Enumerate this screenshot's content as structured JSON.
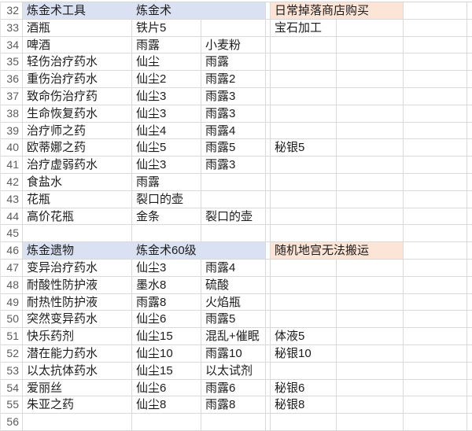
{
  "sheet": {
    "colors": {
      "highlight_blue": "#d9e1f2",
      "highlight_peach": "#fce4d6",
      "gridline": "#d9d9d9",
      "row_number_text": "#5c5c5c",
      "cell_text": "#1c1c1c"
    },
    "rows": [
      {
        "num": "32",
        "name": "炼金术工具",
        "mat1": "炼金术",
        "mat2": "",
        "note": "日常掉落商店购买",
        "highlight": true
      },
      {
        "num": "33",
        "name": "酒瓶",
        "mat1": "铁片5",
        "mat2": "",
        "mat3": "宝石加工"
      },
      {
        "num": "34",
        "name": "啤酒",
        "mat1": "雨露",
        "mat2": "小麦粉",
        "mat3": ""
      },
      {
        "num": "35",
        "name": "轻伤治疗药水",
        "mat1": "仙尘",
        "mat2": "雨露",
        "mat3": ""
      },
      {
        "num": "36",
        "name": "重伤治疗药水",
        "mat1": "仙尘2",
        "mat2": "雨露2",
        "mat3": ""
      },
      {
        "num": "37",
        "name": "致命伤治疗药",
        "mat1": "仙尘3",
        "mat2": "雨露3",
        "mat3": ""
      },
      {
        "num": "38",
        "name": "生命恢复药水",
        "mat1": "仙尘3",
        "mat2": "雨露3",
        "mat3": ""
      },
      {
        "num": "39",
        "name": "治疗师之药",
        "mat1": "仙尘4",
        "mat2": "雨露4",
        "mat3": ""
      },
      {
        "num": "40",
        "name": "欧蒂娜之药",
        "mat1": "仙尘5",
        "mat2": "雨露5",
        "mat3": "秘银5"
      },
      {
        "num": "41",
        "name": "治疗虚弱药水",
        "mat1": "仙尘3",
        "mat2": "雨露3",
        "mat3": ""
      },
      {
        "num": "42",
        "name": "食盐水",
        "mat1": "雨露",
        "mat2": "",
        "mat3": ""
      },
      {
        "num": "43",
        "name": "花瓶",
        "mat1": "裂口的壶",
        "mat2": "",
        "mat3": ""
      },
      {
        "num": "44",
        "name": "高价花瓶",
        "mat1": "金条",
        "mat2": "裂口的壶",
        "mat3": ""
      },
      {
        "num": "45",
        "name": "",
        "mat1": "",
        "mat2": "",
        "mat3": ""
      },
      {
        "num": "46",
        "name": "炼金遗物",
        "mat1": "炼金术60级",
        "mat2": "",
        "note": "随机地宫无法搬运",
        "highlight": true
      },
      {
        "num": "47",
        "name": "变异治疗药水",
        "mat1": "仙尘3",
        "mat2": "雨露4",
        "mat3": ""
      },
      {
        "num": "48",
        "name": "耐酸性防护液",
        "mat1": "墨水8",
        "mat2": "硫酸",
        "mat3": ""
      },
      {
        "num": "49",
        "name": "耐热性防护液",
        "mat1": "雨露8",
        "mat2": "火焰瓶",
        "mat3": ""
      },
      {
        "num": "50",
        "name": "突然变异药水",
        "mat1": "仙尘6",
        "mat2": "雨露5",
        "mat3": ""
      },
      {
        "num": "51",
        "name": "快乐药剂",
        "mat1": "仙尘15",
        "mat2": "混乱+催眠",
        "mat3": "体液5"
      },
      {
        "num": "52",
        "name": "潜在能力药水",
        "mat1": "仙尘10",
        "mat2": "雨露10",
        "mat3": "秘银10"
      },
      {
        "num": "53",
        "name": "以太抗体药水",
        "mat1": "仙尘15",
        "mat2": "以太试剂",
        "mat3": ""
      },
      {
        "num": "54",
        "name": "爱丽丝",
        "mat1": "仙尘6",
        "mat2": "雨露6",
        "mat3": "秘银6"
      },
      {
        "num": "55",
        "name": "朱亚之药",
        "mat1": "仙尘8",
        "mat2": "雨露8",
        "mat3": "秘银8"
      },
      {
        "num": "56",
        "name": "",
        "mat1": "",
        "mat2": "",
        "mat3": ""
      }
    ]
  }
}
